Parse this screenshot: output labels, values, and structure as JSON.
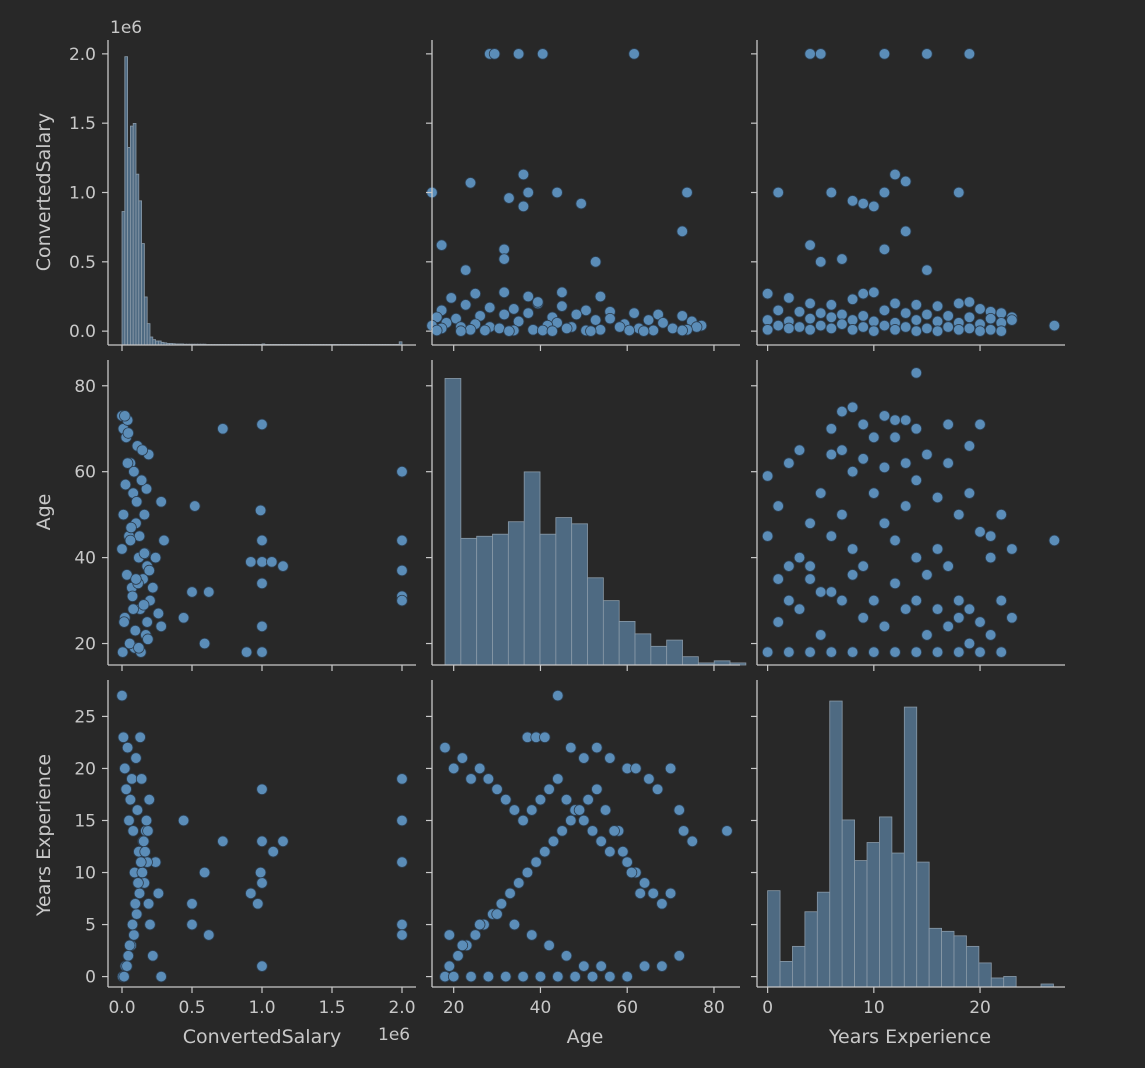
{
  "colors": {
    "background": "#282828",
    "text": "#c8c8c8",
    "bar": "#4e6a82",
    "point": "#5b8db8"
  },
  "chart_data": [
    {
      "id": "hist-salary",
      "type": "bar",
      "xlim": [
        -100000,
        2100000
      ],
      "bin_start": 0,
      "bin_width": 20000,
      "counts": [
        0.5,
        1.08,
        0.74,
        0.82,
        0.83,
        0.64,
        0.54,
        0.38,
        0.18,
        0.08,
        0.03,
        0.02,
        0.015,
        0.015,
        0.01,
        0.008,
        0.006,
        0.006,
        0.005,
        0.004,
        0.004,
        0.004,
        0.003,
        0.003,
        0.003,
        0.003,
        0.003,
        0.003,
        0.003,
        0.003,
        0.002,
        0.002,
        0.002,
        0.002,
        0.002,
        0.002,
        0.002,
        0.002,
        0.002,
        0.002,
        0.002,
        0.002,
        0.002,
        0.002,
        0.002,
        0.002,
        0.002,
        0.002,
        0.002,
        0.002,
        0.004,
        0.002,
        0.002,
        0.002,
        0.002,
        0.002,
        0.002,
        0.002,
        0.002,
        0.002,
        0.002,
        0.002,
        0.002,
        0.002,
        0.002,
        0.002,
        0.002,
        0.002,
        0.002,
        0.002,
        0.002,
        0.002,
        0.002,
        0.002,
        0.002,
        0.002,
        0.002,
        0.002,
        0.002,
        0.002,
        0.002,
        0.002,
        0.002,
        0.002,
        0.002,
        0.002,
        0.002,
        0.002,
        0.002,
        0.002,
        0.002,
        0.002,
        0.002,
        0.002,
        0.002,
        0.002,
        0.002,
        0.002,
        0.002,
        0.012
      ],
      "count_max": 1.12
    },
    {
      "id": "scatter-salary-age",
      "type": "scatter",
      "xlim": [
        18,
        82
      ],
      "ylim": [
        -100000,
        2100000
      ],
      "x": [
        30,
        31,
        36,
        41,
        60,
        18,
        26,
        37,
        38,
        44,
        71,
        34,
        37,
        49,
        70,
        52,
        20,
        33,
        33,
        25,
        33,
        38,
        45,
        22,
        27,
        40,
        53,
        20,
        25,
        30,
        35,
        40,
        45,
        50,
        55,
        60,
        65,
        70,
        19,
        23,
        28,
        33,
        38,
        43,
        48,
        55,
        63,
        72,
        21,
        27,
        36,
        44,
        52,
        58,
        66,
        74,
        18,
        24,
        30,
        42,
        47,
        57,
        68,
        73,
        20,
        26,
        32,
        39,
        46,
        53,
        61,
        71,
        19,
        29,
        35,
        41,
        50,
        59,
        64,
        70,
        24,
        34,
        43,
        51,
        62
      ],
      "y": [
        2000000,
        2000000,
        2000000,
        2000000,
        2000000,
        1000000,
        1070000,
        1130000,
        1000000,
        1000000,
        1000000,
        960000,
        900000,
        920000,
        720000,
        500000,
        620000,
        590000,
        520000,
        440000,
        280000,
        250000,
        280000,
        240000,
        270000,
        200000,
        250000,
        150000,
        190000,
        170000,
        160000,
        210000,
        180000,
        150000,
        140000,
        130000,
        120000,
        110000,
        100000,
        90000,
        110000,
        120000,
        130000,
        100000,
        120000,
        90000,
        80000,
        70000,
        60000,
        50000,
        70000,
        60000,
        80000,
        50000,
        60000,
        40000,
        40000,
        30000,
        30000,
        40000,
        30000,
        30000,
        20000,
        30000,
        20000,
        10000,
        20000,
        10000,
        20000,
        10000,
        20000,
        10000,
        5000,
        5000,
        5000,
        5000,
        5000,
        5000,
        5000,
        5000,
        0,
        0,
        0,
        0,
        0
      ]
    },
    {
      "id": "scatter-salary-exp",
      "type": "scatter",
      "xlim": [
        -1,
        28
      ],
      "ylim": [
        -100000,
        2100000
      ],
      "x": [
        4,
        5,
        11,
        15,
        19,
        1,
        6,
        9,
        13,
        12,
        8,
        10,
        11,
        13,
        18,
        4,
        11,
        5,
        7,
        15,
        0,
        2,
        4,
        6,
        8,
        9,
        10,
        12,
        14,
        16,
        18,
        19,
        20,
        21,
        22,
        23,
        27,
        1,
        3,
        5,
        7,
        9,
        11,
        13,
        15,
        17,
        19,
        21,
        23,
        0,
        2,
        4,
        6,
        8,
        10,
        12,
        14,
        16,
        18,
        20,
        22,
        1,
        3,
        5,
        7,
        9,
        11,
        13,
        15,
        17,
        19,
        21,
        0,
        2,
        4,
        6,
        8,
        10,
        12,
        14,
        16,
        18,
        20,
        22
      ],
      "y": [
        2000000,
        2000000,
        2000000,
        2000000,
        2000000,
        1000000,
        1000000,
        920000,
        1080000,
        1130000,
        940000,
        900000,
        1000000,
        720000,
        1000000,
        620000,
        590000,
        500000,
        520000,
        440000,
        270000,
        240000,
        200000,
        190000,
        230000,
        270000,
        280000,
        200000,
        190000,
        180000,
        200000,
        210000,
        160000,
        140000,
        130000,
        100000,
        40000,
        150000,
        140000,
        130000,
        120000,
        110000,
        150000,
        130000,
        120000,
        110000,
        100000,
        90000,
        80000,
        80000,
        70000,
        90000,
        100000,
        80000,
        70000,
        60000,
        80000,
        70000,
        60000,
        50000,
        60000,
        40000,
        30000,
        40000,
        50000,
        30000,
        40000,
        30000,
        20000,
        30000,
        20000,
        10000,
        10000,
        20000,
        10000,
        20000,
        10000,
        0,
        10000,
        0,
        0,
        10000,
        0,
        0
      ]
    },
    {
      "id": "scatter-age-salary",
      "type": "scatter",
      "xlim": [
        -100000,
        2100000
      ],
      "ylim": [
        15,
        86
      ],
      "x": [
        2000000,
        2000000,
        2000000,
        2000000,
        2000000,
        1000000,
        1000000,
        1000000,
        1000000,
        1000000,
        1000000,
        1150000,
        1070000,
        990000,
        920000,
        890000,
        720000,
        620000,
        590000,
        500000,
        520000,
        440000,
        280000,
        300000,
        280000,
        260000,
        220000,
        240000,
        0,
        5000,
        10000,
        20000,
        30000,
        40000,
        50000,
        60000,
        70000,
        80000,
        90000,
        100000,
        110000,
        120000,
        130000,
        140000,
        150000,
        160000,
        170000,
        180000,
        190000,
        200000,
        0,
        15000,
        25000,
        35000,
        45000,
        55000,
        65000,
        75000,
        85000,
        95000,
        105000,
        115000,
        125000,
        135000,
        145000,
        155000,
        165000,
        175000,
        185000,
        195000,
        10000,
        20000,
        40000,
        60000,
        80000,
        100000,
        120000,
        140000,
        160000,
        180000
      ],
      "y": [
        60,
        44,
        37,
        31,
        30,
        71,
        44,
        39,
        34,
        18,
        24,
        38,
        39,
        51,
        39,
        18,
        70,
        32,
        20,
        32,
        52,
        26,
        53,
        44,
        24,
        27,
        33,
        40,
        73,
        18,
        70,
        26,
        68,
        72,
        45,
        62,
        33,
        55,
        19,
        48,
        66,
        40,
        28,
        58,
        35,
        50,
        22,
        38,
        64,
        30,
        42,
        25,
        57,
        36,
        69,
        20,
        47,
        31,
        60,
        23,
        53,
        34,
        45,
        18,
        65,
        29,
        41,
        56,
        21,
        37,
        50,
        73,
        62,
        44,
        28,
        35,
        19,
        58,
        41,
        25
      ]
    },
    {
      "id": "hist-age",
      "type": "bar",
      "xlim": [
        15,
        86
      ],
      "bin_start": 18,
      "bin_width": 3.65,
      "counts": [
        83,
        44.5,
        45,
        45.5,
        48.5,
        60.5,
        45.5,
        49.5,
        48,
        35,
        29.5,
        24.5,
        21.5,
        18.5,
        20,
        16,
        14.5,
        15,
        14.5
      ],
      "count_max": 86,
      "count_floor": 14
    },
    {
      "id": "scatter-age-exp",
      "type": "scatter",
      "xlim": [
        -1,
        28
      ],
      "ylim": [
        15,
        86
      ],
      "x": [
        14,
        8,
        11,
        13,
        14,
        9,
        12,
        7,
        6,
        17,
        19,
        20,
        22,
        21,
        23,
        27,
        0,
        1,
        2,
        3,
        4,
        5,
        6,
        7,
        8,
        9,
        10,
        11,
        12,
        13,
        14,
        15,
        16,
        17,
        18,
        19,
        20,
        21,
        22,
        23,
        0,
        1,
        2,
        3,
        4,
        5,
        6,
        7,
        8,
        9,
        10,
        11,
        12,
        13,
        14,
        15,
        16,
        17,
        18,
        19,
        20,
        0,
        2,
        4,
        6,
        8,
        10,
        12,
        14,
        16,
        18,
        20,
        22,
        1,
        3,
        5,
        7,
        9,
        11,
        13,
        15,
        17,
        19,
        21,
        2,
        4,
        6,
        8,
        10,
        12,
        14,
        16,
        18
      ],
      "y": [
        83,
        75,
        73,
        72,
        70,
        71,
        68,
        65,
        64,
        71,
        66,
        71,
        50,
        45,
        42,
        44,
        59,
        52,
        62,
        65,
        48,
        55,
        70,
        74,
        60,
        63,
        68,
        61,
        72,
        62,
        58,
        64,
        54,
        62,
        50,
        55,
        46,
        40,
        30,
        26,
        45,
        35,
        30,
        40,
        38,
        32,
        45,
        50,
        42,
        38,
        55,
        48,
        44,
        52,
        40,
        36,
        42,
        38,
        30,
        28,
        25,
        18,
        18,
        18,
        18,
        18,
        18,
        18,
        18,
        18,
        18,
        18,
        18,
        25,
        28,
        22,
        30,
        26,
        24,
        28,
        22,
        24,
        20,
        22,
        38,
        35,
        32,
        36,
        30,
        34,
        30,
        28,
        26
      ]
    },
    {
      "id": "scatter-exp-salary",
      "type": "scatter",
      "xlim": [
        -100000,
        2100000
      ],
      "ylim": [
        -1,
        28.5
      ],
      "x": [
        2000000,
        2000000,
        2000000,
        2000000,
        2000000,
        1000000,
        1000000,
        1000000,
        1000000,
        1150000,
        1080000,
        990000,
        970000,
        920000,
        720000,
        620000,
        590000,
        500000,
        500000,
        440000,
        280000,
        260000,
        240000,
        220000,
        0,
        10000,
        20000,
        30000,
        40000,
        50000,
        60000,
        70000,
        80000,
        90000,
        100000,
        110000,
        120000,
        130000,
        140000,
        150000,
        160000,
        170000,
        180000,
        190000,
        200000,
        5000,
        25000,
        45000,
        65000,
        85000,
        105000,
        125000,
        145000,
        165000,
        185000,
        15000,
        35000,
        55000,
        75000,
        95000,
        115000,
        135000,
        155000,
        175000,
        195000
      ],
      "y": [
        19,
        15,
        11,
        5,
        4,
        18,
        13,
        9,
        1,
        13,
        12,
        10,
        7,
        8,
        13,
        4,
        10,
        7,
        5,
        15,
        0,
        8,
        11,
        2,
        27,
        23,
        20,
        18,
        22,
        15,
        17,
        19,
        14,
        10,
        21,
        16,
        12,
        23,
        19,
        13,
        9,
        14,
        11,
        7,
        5,
        0,
        1,
        2,
        3,
        4,
        6,
        8,
        10,
        12,
        14,
        0,
        1,
        3,
        5,
        7,
        9,
        11,
        13,
        15,
        17
      ]
    },
    {
      "id": "scatter-exp-age",
      "type": "scatter",
      "xlim": [
        15,
        86
      ],
      "ylim": [
        -1,
        28.5
      ],
      "x": [
        44,
        37,
        39,
        41,
        47,
        50,
        53,
        56,
        60,
        62,
        65,
        67,
        70,
        72,
        73,
        75,
        83,
        18,
        20,
        22,
        24,
        26,
        28,
        30,
        32,
        34,
        36,
        38,
        40,
        42,
        44,
        46,
        48,
        50,
        52,
        54,
        56,
        58,
        60,
        62,
        64,
        66,
        68,
        70,
        18,
        19,
        21,
        23,
        25,
        27,
        29,
        31,
        33,
        35,
        37,
        39,
        41,
        43,
        45,
        47,
        49,
        51,
        53,
        55,
        57,
        59,
        61,
        63,
        18,
        20,
        24,
        28,
        32,
        36,
        40,
        44,
        48,
        52,
        56,
        60,
        64,
        68,
        72,
        19,
        22,
        26,
        30,
        34,
        38,
        42,
        46,
        50,
        54
      ],
      "y": [
        27,
        23,
        23,
        23,
        22,
        21,
        22,
        21,
        20,
        20,
        19,
        18,
        20,
        16,
        14,
        13,
        14,
        22,
        20,
        21,
        19,
        20,
        19,
        18,
        17,
        16,
        15,
        16,
        17,
        18,
        19,
        17,
        16,
        15,
        14,
        13,
        12,
        14,
        11,
        10,
        9,
        8,
        7,
        8,
        0,
        1,
        2,
        3,
        4,
        5,
        6,
        7,
        8,
        9,
        10,
        11,
        12,
        13,
        14,
        15,
        16,
        17,
        18,
        16,
        14,
        12,
        10,
        8,
        0,
        0,
        0,
        0,
        0,
        0,
        0,
        0,
        0,
        0,
        0,
        0,
        1,
        1,
        2,
        4,
        3,
        5,
        6,
        5,
        4,
        3,
        2,
        1,
        1
      ]
    },
    {
      "id": "hist-exp",
      "type": "bar",
      "xlim": [
        -1,
        28
      ],
      "bin_start": 0,
      "bin_width": 1.17,
      "counts": [
        6.4,
        1.7,
        2.7,
        5,
        6.3,
        19,
        11.1,
        8.4,
        9.6,
        11.3,
        8.9,
        18.6,
        8.3,
        3.9,
        3.7,
        3.4,
        2.7,
        1.6,
        0.6,
        0.7,
        0,
        0,
        0.2
      ],
      "count_max": 20
    }
  ],
  "axes": {
    "ticks": {
      "salary": {
        "values": [
          0,
          500000,
          1000000,
          1500000,
          2000000
        ],
        "labels": [
          "0.0",
          "0.5",
          "1.0",
          "1.5",
          "2.0"
        ]
      },
      "age_x": {
        "values": [
          20,
          40,
          60,
          80
        ],
        "labels": [
          "20",
          "40",
          "60",
          "80"
        ]
      },
      "age_y": {
        "values": [
          20,
          40,
          60,
          80
        ],
        "labels": [
          "20",
          "40",
          "60",
          "80"
        ]
      },
      "exp_x": {
        "values": [
          0,
          10,
          20
        ],
        "labels": [
          "0",
          "10",
          "20"
        ]
      },
      "exp_y": {
        "values": [
          0,
          5,
          10,
          15,
          20,
          25
        ],
        "labels": [
          "0",
          "5",
          "10",
          "15",
          "20",
          "25"
        ]
      }
    },
    "ylabels": [
      "ConvertedSalary",
      "Age",
      "Years Experience"
    ],
    "xlabels": [
      "ConvertedSalary",
      "Age",
      "Years Experience"
    ],
    "offset_top": "1e6",
    "offset_bottom": "1e6"
  }
}
